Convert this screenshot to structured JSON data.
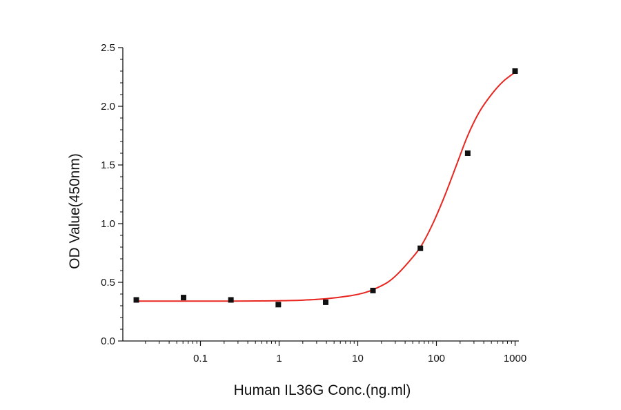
{
  "chart_data": {
    "type": "scatter",
    "xlabel": "Human IL36G Conc.(ng.ml)",
    "ylabel": "OD Value(450nm)",
    "x_scale": "log",
    "xlim": [
      0.0122,
      1250
    ],
    "ylim": [
      0,
      2.5
    ],
    "x_ticks": [
      0.1,
      1,
      10,
      100,
      1000
    ],
    "x_tick_labels": [
      "0.1",
      "1",
      "10",
      "100",
      "1000"
    ],
    "y_ticks": [
      0,
      0.5,
      1,
      1.5,
      2,
      2.5
    ],
    "y_tick_labels": [
      "0.0",
      "0.5",
      "1.0",
      "1.5",
      "2.0",
      "2.5"
    ],
    "grid": false,
    "legend": "none",
    "series": [
      {
        "kind": "points",
        "marker": "square",
        "color": "#111111",
        "x": [
          0.0153,
          0.061,
          0.244,
          0.977,
          3.91,
          15.6,
          62.5,
          250,
          1000
        ],
        "y": [
          0.35,
          0.37,
          0.35,
          0.31,
          0.33,
          0.43,
          0.79,
          1.6,
          2.3
        ]
      },
      {
        "kind": "fit",
        "color": "#e8261f",
        "x": [
          0.0153,
          0.03,
          0.06,
          0.12,
          0.25,
          0.5,
          1,
          2,
          4,
          8,
          12,
          16,
          24,
          32,
          48,
          64,
          90,
          128,
          180,
          250,
          350,
          500,
          700,
          1000
        ],
        "y": [
          0.34,
          0.34,
          0.34,
          0.34,
          0.34,
          0.341,
          0.343,
          0.348,
          0.36,
          0.385,
          0.41,
          0.44,
          0.5,
          0.57,
          0.7,
          0.81,
          1.0,
          1.24,
          1.5,
          1.75,
          1.95,
          2.1,
          2.21,
          2.29
        ]
      }
    ]
  }
}
